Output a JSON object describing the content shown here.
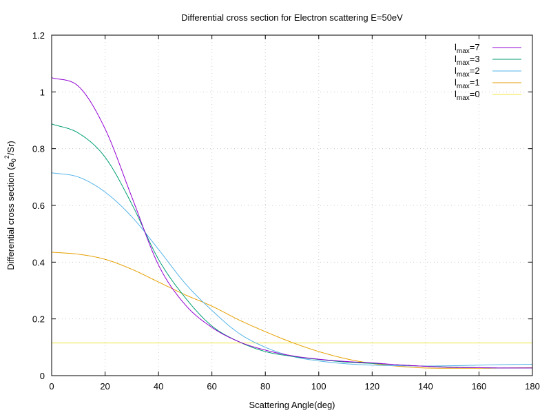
{
  "chart_data": {
    "type": "line",
    "title": "Differential cross section for Electron scattering E=50eV",
    "xlabel": "Scattering Angle(deg)",
    "ylabel": "Differential cross section (a0²/Sr)",
    "xlim": [
      0,
      180
    ],
    "ylim": [
      0,
      1.2
    ],
    "xticks": [
      0,
      20,
      40,
      60,
      80,
      100,
      120,
      140,
      160,
      180
    ],
    "yticks": [
      0,
      0.2,
      0.4,
      0.6,
      0.8,
      1,
      1.2
    ],
    "xtick_labels": [
      "0",
      "20",
      "40",
      "60",
      "80",
      "100",
      "120",
      "140",
      "160",
      "180"
    ],
    "ytick_labels": [
      "0",
      "0.2",
      "0.4",
      "0.6",
      "0.8",
      "1",
      "1.2"
    ],
    "grid": true,
    "legend_position": "top-right",
    "x": [
      0,
      10,
      20,
      30,
      40,
      50,
      60,
      70,
      80,
      90,
      100,
      110,
      120,
      130,
      140,
      150,
      160,
      170,
      180
    ],
    "series": [
      {
        "name": "lmax=7",
        "legend_main": "l",
        "legend_sub": "max",
        "legend_eq": "=7",
        "color": "#9400d3",
        "values": [
          1.05,
          1.02,
          0.87,
          0.63,
          0.39,
          0.25,
          0.17,
          0.12,
          0.09,
          0.07,
          0.058,
          0.05,
          0.045,
          0.038,
          0.033,
          0.029,
          0.028,
          0.027,
          0.027
        ]
      },
      {
        "name": "lmax=3",
        "legend_main": "l",
        "legend_sub": "max",
        "legend_eq": "=3",
        "color": "#009e73",
        "values": [
          0.887,
          0.855,
          0.77,
          0.605,
          0.41,
          0.275,
          0.175,
          0.12,
          0.085,
          0.068,
          0.057,
          0.048,
          0.043,
          0.038,
          0.033,
          0.03,
          0.028,
          0.027,
          0.027
        ]
      },
      {
        "name": "lmax=2",
        "legend_main": "l",
        "legend_sub": "max",
        "legend_eq": "=2",
        "color": "#56b4e9",
        "values": [
          0.715,
          0.7,
          0.647,
          0.56,
          0.445,
          0.325,
          0.23,
          0.15,
          0.1,
          0.068,
          0.052,
          0.042,
          0.037,
          0.035,
          0.034,
          0.035,
          0.037,
          0.039,
          0.04
        ]
      },
      {
        "name": "lmax=1",
        "legend_main": "l",
        "legend_sub": "max",
        "legend_eq": "=1",
        "color": "#e69f00",
        "values": [
          0.435,
          0.428,
          0.41,
          0.375,
          0.33,
          0.285,
          0.245,
          0.197,
          0.155,
          0.117,
          0.085,
          0.06,
          0.043,
          0.033,
          0.027,
          0.026,
          0.026,
          0.027,
          0.028
        ]
      },
      {
        "name": "lmax=0",
        "legend_main": "l",
        "legend_sub": "max",
        "legend_eq": "=0",
        "color": "#f0e442",
        "values": [
          0.115,
          0.115,
          0.115,
          0.115,
          0.115,
          0.115,
          0.115,
          0.115,
          0.115,
          0.115,
          0.115,
          0.115,
          0.115,
          0.115,
          0.115,
          0.115,
          0.115,
          0.115,
          0.115
        ]
      }
    ]
  },
  "ylabel_parts": {
    "pre": "Differential cross section (a",
    "sub": "0",
    "sup": "2",
    "post": "/Sr)"
  }
}
